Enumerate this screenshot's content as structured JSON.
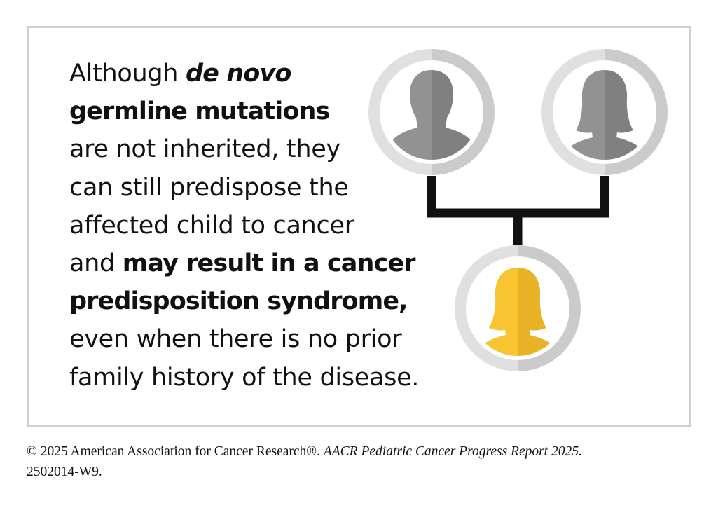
{
  "statement": {
    "line1_plain": "Although ",
    "line1_italic_bold": "de novo",
    "line2_bold": "germline mutations",
    "line3": "are not inherited, they",
    "line4": "can still predispose the",
    "line5": "affected child to cancer",
    "line6_plain": "and ",
    "line6_bold": "may result in a cancer",
    "line7_bold": "predisposition syndrome,",
    "line8": "even when there is no prior",
    "line9": "family history of the disease."
  },
  "pedigree": {
    "parent_left": "male-person-icon",
    "parent_right": "female-person-icon",
    "child": "female-person-icon",
    "colors": {
      "ring": "#e0e0e1",
      "ring_shade": "#cbcbcc",
      "parent_light": "#929292",
      "parent_dark": "#808080",
      "child_light": "#f6c531",
      "child_dark": "#e8b326",
      "connector": "#111111"
    }
  },
  "footer": {
    "copyright": "© 2025 American Association for Cancer Research®. ",
    "report_title": "AACR Pediatric Cancer Progress Report 2025.",
    "code": "2502014-W9."
  }
}
